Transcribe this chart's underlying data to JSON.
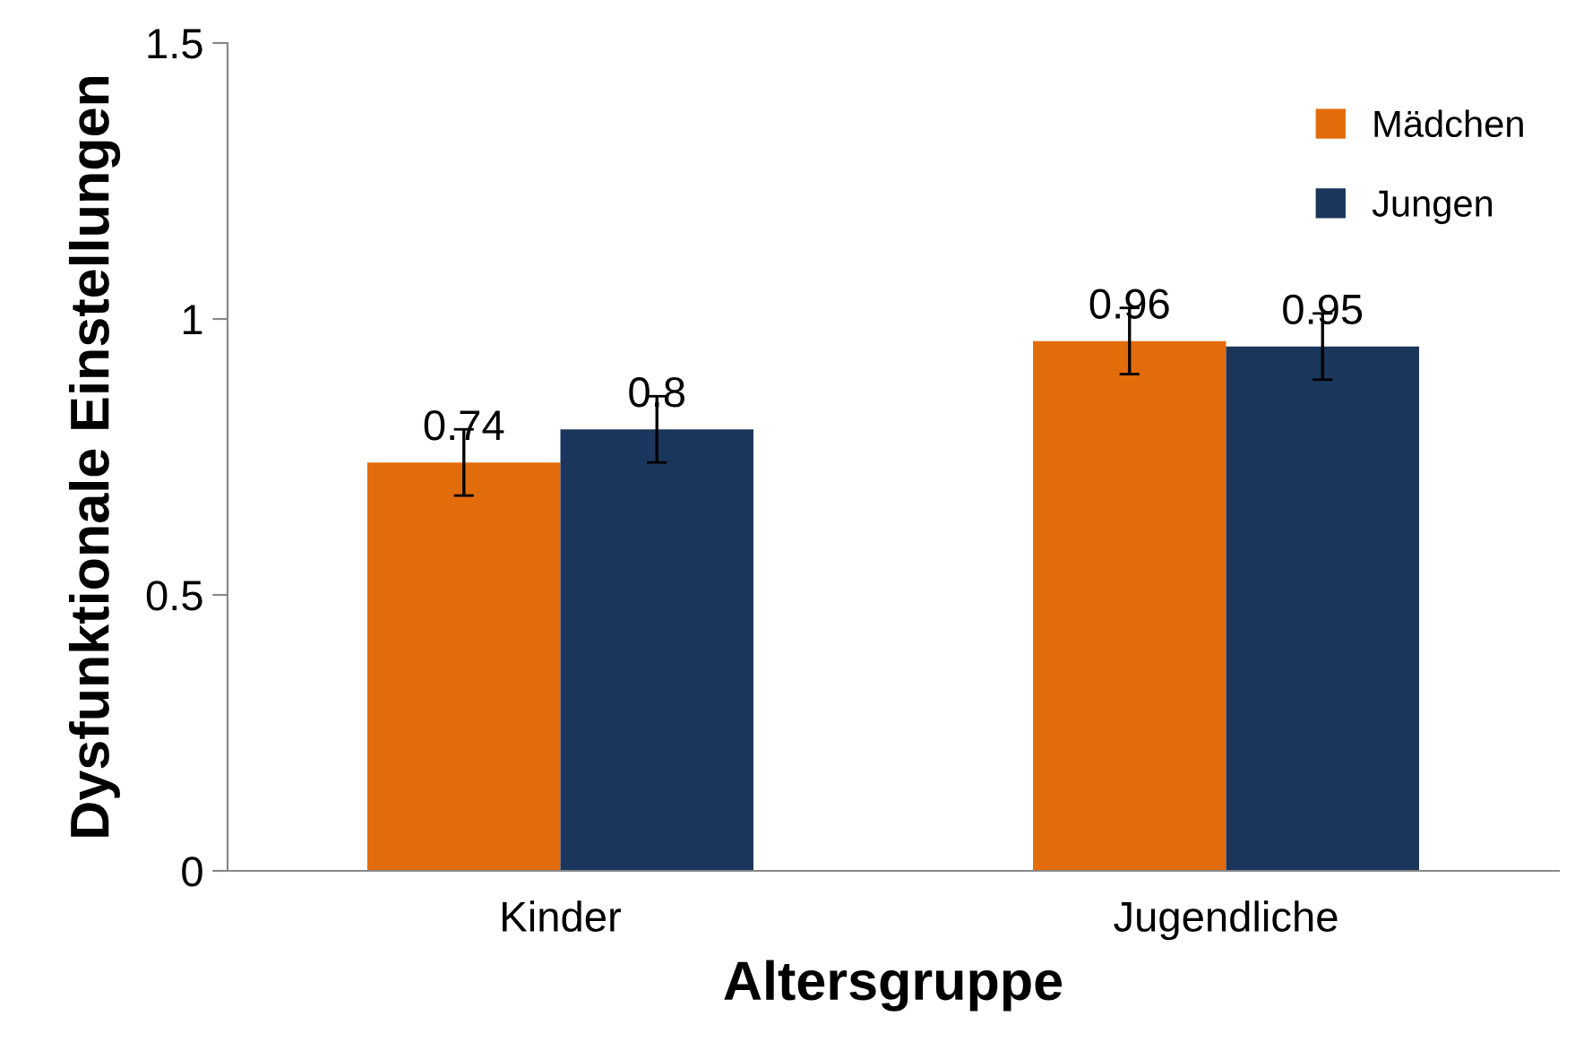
{
  "chart_data": {
    "type": "bar",
    "xlabel": "Altersgruppe",
    "ylabel": "Dysfunktionale Einstellungen",
    "categories": [
      "Kinder",
      "Jugendliche"
    ],
    "series": [
      {
        "name": "Mädchen",
        "color": "#e36c0a",
        "values": [
          0.74,
          0.96
        ],
        "errors": [
          0.06,
          0.06
        ]
      },
      {
        "name": "Jungen",
        "color": "#1b365d",
        "values": [
          0.8,
          0.95
        ],
        "errors": [
          0.06,
          0.06
        ]
      }
    ],
    "ylim": [
      0,
      1.5
    ],
    "yticks": [
      0,
      0.5,
      1,
      1.5
    ],
    "data_labels": true,
    "legend": "top right",
    "grid": false
  }
}
